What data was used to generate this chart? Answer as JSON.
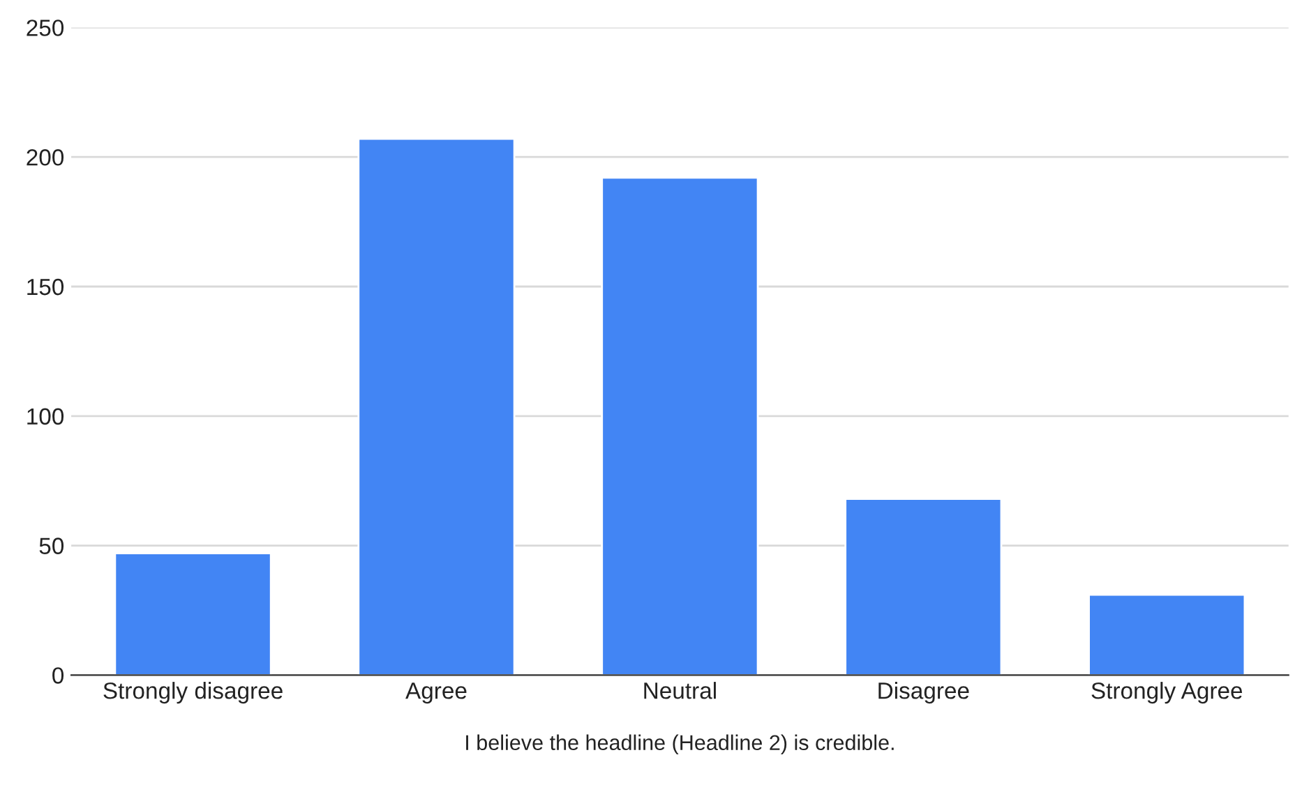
{
  "chart_data": {
    "type": "bar",
    "xlabel": "I believe the headline (Headline 2) is credible.",
    "categories": [
      "Strongly disagree",
      "Agree",
      "Neutral",
      "Disagree",
      "Strongly Agree"
    ],
    "values": [
      47,
      207,
      192,
      68,
      31
    ],
    "color": "#4285f4",
    "ylim": [
      0,
      250
    ],
    "yticks": [
      0,
      50,
      100,
      150,
      200,
      250
    ],
    "grid": "y",
    "legend": false
  }
}
